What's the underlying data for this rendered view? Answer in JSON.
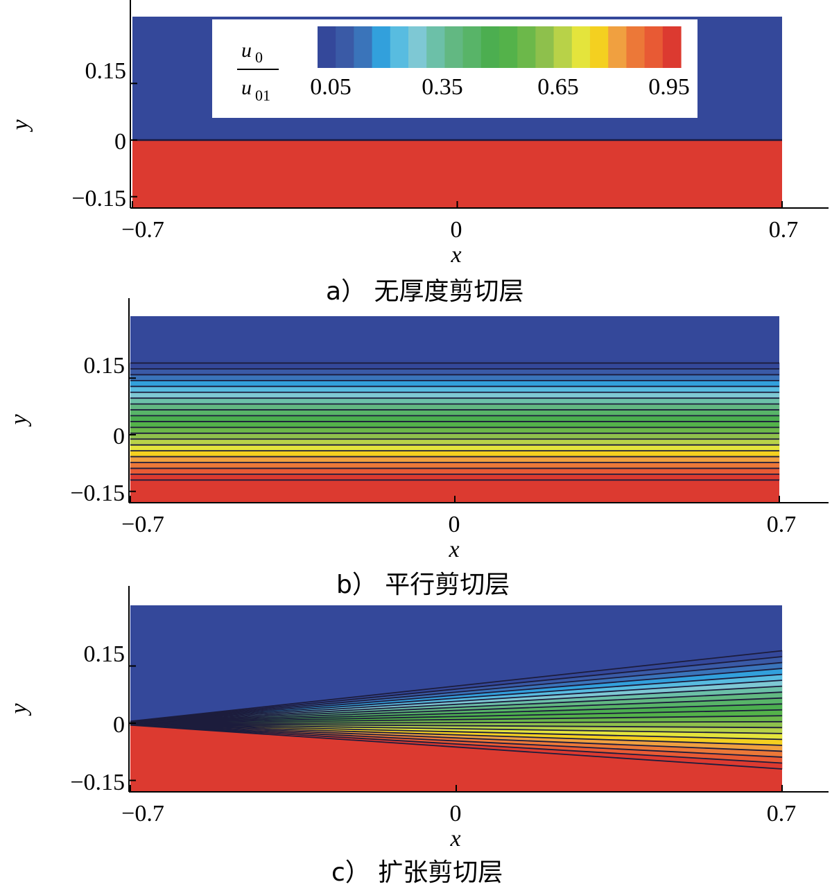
{
  "colorbar": {
    "label_numerator_var": "u",
    "label_numerator_sub": "0",
    "label_denominator_var": "u",
    "label_denominator_sub": "01",
    "levels": [
      0,
      0.05,
      0.1,
      0.15,
      0.2,
      0.25,
      0.3,
      0.35,
      0.4,
      0.45,
      0.5,
      0.55,
      0.6,
      0.65,
      0.7,
      0.75,
      0.8,
      0.85,
      0.9,
      0.95,
      1.0
    ],
    "colors": [
      "#34489a",
      "#3a5aa6",
      "#3a74ba",
      "#32a0dc",
      "#58bce0",
      "#7ec8d4",
      "#6cc0a8",
      "#62b882",
      "#58b468",
      "#4cae50",
      "#54b24a",
      "#6cb84a",
      "#8ec04c",
      "#b8d248",
      "#e4e43c",
      "#f4d020",
      "#f0a040",
      "#ec7838",
      "#e85a34",
      "#dc3a30"
    ],
    "tick_values": [
      0.05,
      0.35,
      0.65,
      0.95
    ],
    "tick_labels": [
      "0.05",
      "0.35",
      "0.65",
      "0.95"
    ]
  },
  "chart_data": [
    {
      "type": "heatmap",
      "caption": "a）  无厚度剪切层",
      "xlabel": "x",
      "ylabel": "y",
      "xlim": [
        -0.7,
        0.7
      ],
      "ylim": [
        -0.18,
        0.28
      ],
      "x_ticks": [
        -0.7,
        0,
        0.7
      ],
      "x_tick_labels": [
        "−0.7",
        "0",
        "0.7"
      ],
      "y_ticks": [
        -0.15,
        0,
        0.15
      ],
      "y_tick_labels": [
        "−0.15",
        "0",
        "0.15"
      ],
      "shear_layer": "zero_thickness",
      "u_upper": 0.0,
      "u_lower": 1.0,
      "layer_half_width_start": 0.0,
      "layer_half_width_end": 0.0
    },
    {
      "type": "heatmap",
      "caption": "b）  平行剪切层",
      "xlabel": "x",
      "ylabel": "y",
      "xlim": [
        -0.7,
        0.7
      ],
      "ylim": [
        -0.18,
        0.28
      ],
      "x_ticks": [
        -0.7,
        0,
        0.7
      ],
      "x_tick_labels": [
        "−0.7",
        "0",
        "0.7"
      ],
      "y_ticks": [
        -0.15,
        0,
        0.15
      ],
      "y_tick_labels": [
        "−0.15",
        "0",
        "0.15"
      ],
      "shear_layer": "parallel",
      "u_upper": 0.0,
      "u_lower": 1.0,
      "layer_top_start": 0.19,
      "layer_bottom_start": -0.12,
      "layer_top_end": 0.19,
      "layer_bottom_end": -0.12
    },
    {
      "type": "heatmap",
      "caption": "c）  扩张剪切层",
      "xlabel": "x",
      "ylabel": "y",
      "xlim": [
        -0.7,
        0.7
      ],
      "ylim": [
        -0.18,
        0.28
      ],
      "x_ticks": [
        -0.7,
        0,
        0.7
      ],
      "x_tick_labels": [
        "−0.7",
        "0",
        "0.7"
      ],
      "y_ticks": [
        -0.15,
        0,
        0.15
      ],
      "y_tick_labels": [
        "−0.15",
        "0",
        "0.15"
      ],
      "shear_layer": "spreading",
      "u_upper": 0.0,
      "u_lower": 1.0,
      "layer_top_start": 0.005,
      "layer_bottom_start": -0.005,
      "layer_top_end": 0.19,
      "layer_bottom_end": -0.12
    }
  ]
}
